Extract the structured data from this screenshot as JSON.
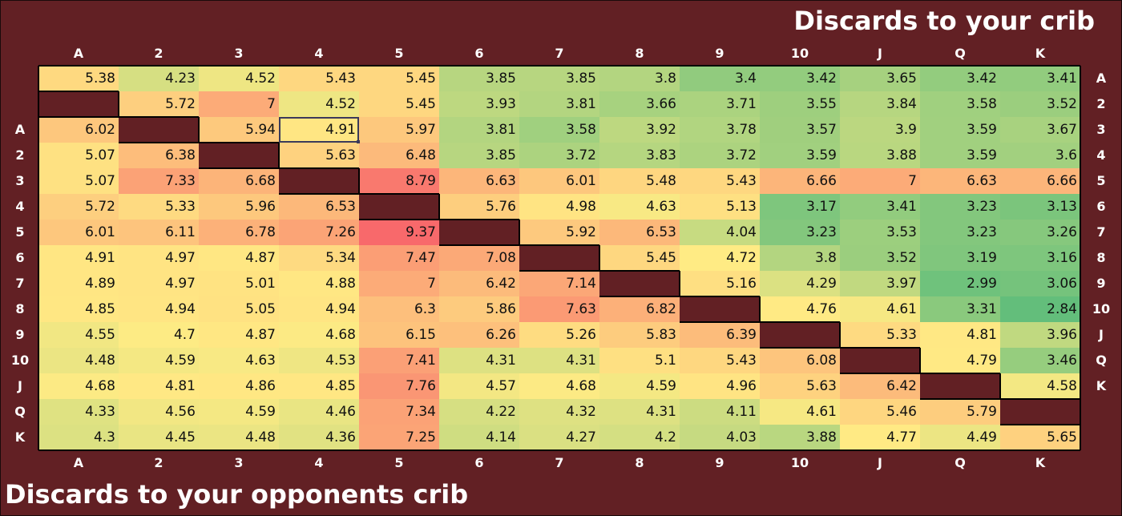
{
  "titles": {
    "top": "Discards to your crib",
    "bottom": "Discards to your opponents crib"
  },
  "colors": {
    "background": "#622024",
    "scale_low": "#f8696b",
    "scale_mid": "#ffeb84",
    "scale_high": "#63be7b",
    "diagonal_fill": "#622024"
  },
  "chart_data": {
    "type": "heatmap",
    "title_top": "Discards to your crib",
    "title_bottom": "Discards to your opponents crib",
    "categories": [
      "A",
      "2",
      "3",
      "4",
      "5",
      "6",
      "7",
      "8",
      "9",
      "10",
      "J",
      "Q",
      "K"
    ],
    "top_axis_labels": [
      "A",
      "2",
      "3",
      "4",
      "5",
      "6",
      "7",
      "8",
      "9",
      "10",
      "J",
      "Q",
      "K"
    ],
    "bottom_axis_labels": [
      "A",
      "2",
      "3",
      "4",
      "5",
      "6",
      "7",
      "8",
      "9",
      "10",
      "J",
      "Q",
      "K"
    ],
    "right_axis_labels": [
      "A",
      "2",
      "3",
      "4",
      "5",
      "6",
      "7",
      "8",
      "9",
      "10",
      "J",
      "Q",
      "K"
    ],
    "left_axis_labels": [
      "A",
      "2",
      "3",
      "4",
      "5",
      "6",
      "7",
      "8",
      "9",
      "10",
      "J",
      "Q",
      "K"
    ],
    "selected_cell": [
      2,
      3
    ],
    "rows": [
      [
        5.38,
        4.23,
        4.52,
        5.43,
        5.45,
        3.85,
        3.85,
        3.8,
        3.4,
        3.42,
        3.65,
        3.42,
        3.41
      ],
      [
        null,
        5.72,
        7,
        4.52,
        5.45,
        3.93,
        3.81,
        3.66,
        3.71,
        3.55,
        3.84,
        3.58,
        3.52
      ],
      [
        6.02,
        null,
        5.94,
        4.91,
        5.97,
        3.81,
        3.58,
        3.92,
        3.78,
        3.57,
        3.9,
        3.59,
        3.67
      ],
      [
        5.07,
        6.38,
        null,
        5.63,
        6.48,
        3.85,
        3.72,
        3.83,
        3.72,
        3.59,
        3.88,
        3.59,
        3.6
      ],
      [
        5.07,
        7.33,
        6.68,
        null,
        8.79,
        6.63,
        6.01,
        5.48,
        5.43,
        6.66,
        7,
        6.63,
        6.66
      ],
      [
        5.72,
        5.33,
        5.96,
        6.53,
        null,
        5.76,
        4.98,
        4.63,
        5.13,
        3.17,
        3.41,
        3.23,
        3.13
      ],
      [
        6.01,
        6.11,
        6.78,
        7.26,
        9.37,
        null,
        5.92,
        6.53,
        4.04,
        3.23,
        3.53,
        3.23,
        3.26
      ],
      [
        4.91,
        4.97,
        4.87,
        5.34,
        7.47,
        7.08,
        null,
        5.45,
        4.72,
        3.8,
        3.52,
        3.19,
        3.16
      ],
      [
        4.89,
        4.97,
        5.01,
        4.88,
        7,
        6.42,
        7.14,
        null,
        5.16,
        4.29,
        3.97,
        2.99,
        3.06
      ],
      [
        4.85,
        4.94,
        5.05,
        4.94,
        6.3,
        5.86,
        7.63,
        6.82,
        null,
        4.76,
        4.61,
        3.31,
        2.84
      ],
      [
        4.55,
        4.7,
        4.87,
        4.68,
        6.15,
        6.26,
        5.26,
        5.83,
        6.39,
        null,
        5.33,
        4.81,
        3.96
      ],
      [
        4.48,
        4.59,
        4.63,
        4.53,
        7.41,
        4.31,
        4.31,
        5.1,
        5.43,
        6.08,
        null,
        4.79,
        3.46
      ],
      [
        4.68,
        4.81,
        4.86,
        4.85,
        7.76,
        4.57,
        4.68,
        4.59,
        4.96,
        5.63,
        6.42,
        null,
        4.58
      ],
      [
        4.33,
        4.56,
        4.59,
        4.46,
        7.34,
        4.22,
        4.32,
        4.31,
        4.11,
        4.61,
        5.46,
        5.79,
        null
      ],
      [
        4.3,
        4.45,
        4.48,
        4.36,
        7.25,
        4.14,
        4.27,
        4.2,
        4.03,
        3.88,
        4.77,
        4.49,
        5.65
      ]
    ]
  }
}
